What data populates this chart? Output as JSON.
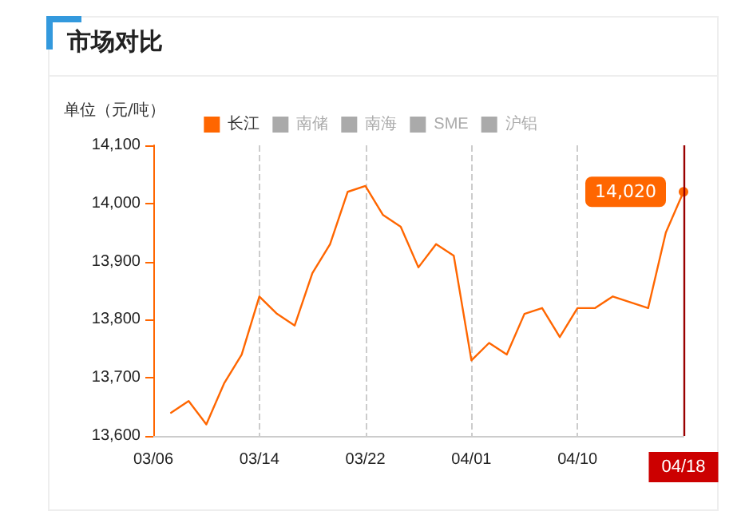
{
  "chart_data": {
    "type": "line",
    "title": "市场对比",
    "ylabel": "单位（元/吨）",
    "categories": [
      "03/06",
      null,
      null,
      null,
      null,
      null,
      "03/14",
      null,
      null,
      null,
      null,
      null,
      "03/22",
      null,
      null,
      null,
      null,
      null,
      "04/01",
      null,
      null,
      null,
      null,
      null,
      "04/10",
      null,
      null,
      null,
      null,
      null,
      "04/18"
    ],
    "series": [
      {
        "name": "长江",
        "color": "#ff6600",
        "values": [
          null,
          13640,
          13660,
          13620,
          13690,
          13740,
          13840,
          13810,
          13790,
          13880,
          13930,
          14020,
          14030,
          13980,
          13960,
          13890,
          13930,
          13910,
          13730,
          13760,
          13740,
          13810,
          13820,
          13770,
          13820,
          13820,
          13840,
          13830,
          13820,
          13950,
          14020
        ],
        "value_labels": [
          null,
          null,
          null,
          null,
          null,
          null,
          null,
          null,
          null,
          null,
          null,
          null,
          null,
          null,
          null,
          null,
          null,
          null,
          null,
          null,
          null,
          null,
          null,
          null,
          null,
          null,
          null,
          null,
          null,
          null,
          "14,020"
        ]
      },
      {
        "name": "南储",
        "color": "#aaaaaa",
        "values": [
          null,
          null,
          null,
          null,
          null,
          null,
          null,
          null,
          null,
          null,
          null,
          null,
          null,
          null,
          null,
          null,
          null,
          null,
          null,
          null,
          null,
          null,
          null,
          null,
          null,
          null,
          null,
          null,
          null,
          null,
          null
        ]
      },
      {
        "name": "南海",
        "color": "#aaaaaa",
        "values": [
          null,
          null,
          null,
          null,
          null,
          null,
          null,
          null,
          null,
          null,
          null,
          null,
          null,
          null,
          null,
          null,
          null,
          null,
          null,
          null,
          null,
          null,
          null,
          null,
          null,
          null,
          null,
          null,
          null,
          null,
          null
        ]
      },
      {
        "name": "SME",
        "color": "#aaaaaa",
        "values": [
          null,
          null,
          null,
          null,
          null,
          null,
          null,
          null,
          null,
          null,
          null,
          null,
          null,
          null,
          null,
          null,
          null,
          null,
          null,
          null,
          null,
          null,
          null,
          null,
          null,
          null,
          null,
          null,
          null,
          null,
          null
        ]
      },
      {
        "name": "沪铝",
        "color": "#aaaaaa",
        "values": [
          null,
          null,
          null,
          null,
          null,
          null,
          null,
          null,
          null,
          null,
          null,
          null,
          null,
          null,
          null,
          null,
          null,
          null,
          null,
          null,
          null,
          null,
          null,
          null,
          null,
          null,
          null,
          null,
          null,
          null,
          null
        ]
      }
    ],
    "ylim": [
      13600,
      14100
    ],
    "yticks": [
      {
        "value": 13600,
        "label": "13,600"
      },
      {
        "value": 13700,
        "label": "13,700"
      },
      {
        "value": 13800,
        "label": "13,800"
      },
      {
        "value": 13900,
        "label": "13,900"
      },
      {
        "value": 14000,
        "label": "14,000"
      },
      {
        "value": 14100,
        "label": "14,100"
      }
    ],
    "ref_lines": [
      {
        "axis": "x",
        "value": "04/18",
        "color": "#990000"
      }
    ],
    "grid": "x",
    "legend": "top",
    "marker": "none",
    "line_style": "solid"
  }
}
